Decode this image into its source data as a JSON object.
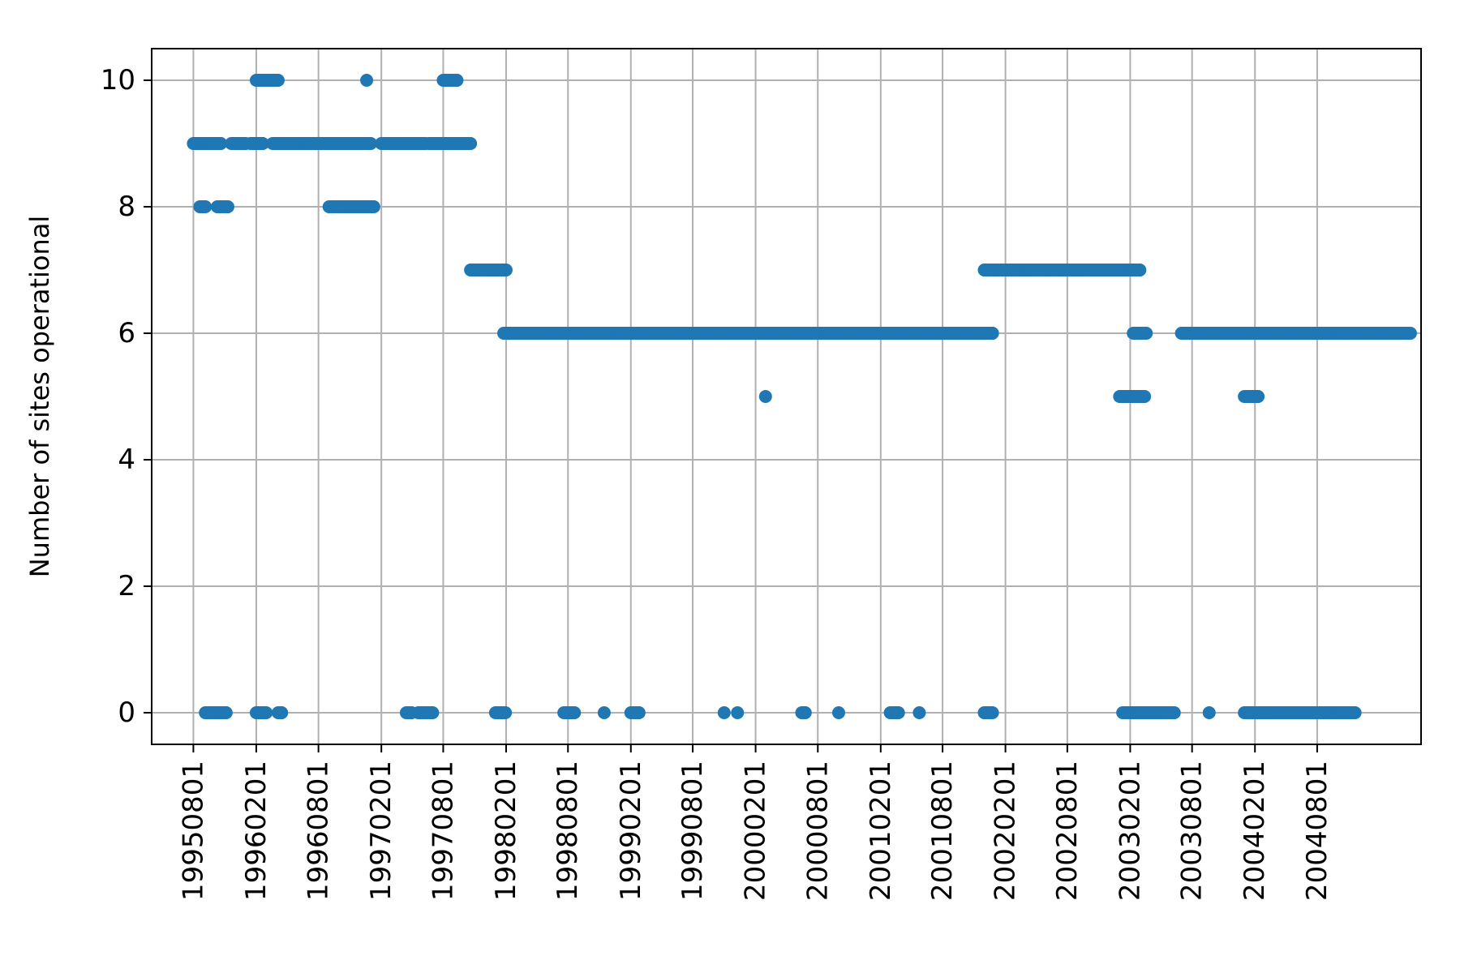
{
  "chart_data": {
    "type": "scatter",
    "title": "",
    "xlabel": "",
    "ylabel": "Number of sites operational",
    "x_axis_type": "date",
    "xlim": [
      "1995-04-01",
      "2005-06-01"
    ],
    "ylim": [
      -0.5,
      10.5
    ],
    "x_ticks": [
      {
        "date": "1995-08-01",
        "label": "19950801"
      },
      {
        "date": "1996-02-01",
        "label": "19960201"
      },
      {
        "date": "1996-08-01",
        "label": "19960801"
      },
      {
        "date": "1997-02-01",
        "label": "19970201"
      },
      {
        "date": "1997-08-01",
        "label": "19970801"
      },
      {
        "date": "1998-02-01",
        "label": "19980201"
      },
      {
        "date": "1998-08-01",
        "label": "19980801"
      },
      {
        "date": "1999-02-01",
        "label": "19990201"
      },
      {
        "date": "1999-08-01",
        "label": "19990801"
      },
      {
        "date": "2000-02-01",
        "label": "20000201"
      },
      {
        "date": "2000-08-01",
        "label": "20000801"
      },
      {
        "date": "2001-02-01",
        "label": "20010201"
      },
      {
        "date": "2001-08-01",
        "label": "20010801"
      },
      {
        "date": "2002-02-01",
        "label": "20020201"
      },
      {
        "date": "2002-08-01",
        "label": "20020801"
      },
      {
        "date": "2003-02-01",
        "label": "20030201"
      },
      {
        "date": "2003-08-01",
        "label": "20030801"
      },
      {
        "date": "2004-02-01",
        "label": "20040201"
      },
      {
        "date": "2004-08-01",
        "label": "20040801"
      }
    ],
    "y_ticks": [
      0,
      2,
      4,
      6,
      8,
      10
    ],
    "grid": true,
    "marker_color": "#1f77b4",
    "series": [
      {
        "runs": [
          {
            "from": "1995-08-01",
            "to": "1995-09-15",
            "y": 9
          },
          {
            "from": "1995-09-20",
            "to": "1995-10-20",
            "y": 9
          },
          {
            "from": "1995-08-20",
            "to": "1995-09-05",
            "y": 8
          },
          {
            "from": "1995-09-05",
            "to": "1995-11-05",
            "y": 0
          },
          {
            "from": "1995-11-20",
            "to": "1996-01-01",
            "y": 9
          },
          {
            "from": "1996-01-15",
            "to": "1996-02-20",
            "y": 9
          },
          {
            "from": "1995-10-10",
            "to": "1995-11-10",
            "y": 8
          },
          {
            "from": "1996-02-01",
            "to": "1996-04-05",
            "y": 10
          },
          {
            "from": "1996-02-01",
            "to": "1996-03-01",
            "y": 0
          },
          {
            "from": "1996-04-05",
            "to": "1996-04-15",
            "y": 0
          },
          {
            "from": "1996-03-20",
            "to": "1997-01-01",
            "y": 9
          },
          {
            "from": "1996-09-01",
            "to": "1997-01-10",
            "y": 8
          },
          {
            "date": "1996-12-20",
            "y": 10
          },
          {
            "from": "1997-02-01",
            "to": "1997-06-10",
            "y": 9
          },
          {
            "from": "1997-04-15",
            "to": "1997-04-30",
            "y": 0
          },
          {
            "from": "1997-05-20",
            "to": "1997-07-01",
            "y": 0
          },
          {
            "from": "1997-06-20",
            "to": "1997-10-20",
            "y": 9
          },
          {
            "from": "1997-08-01",
            "to": "1997-09-10",
            "y": 10
          },
          {
            "from": "1997-10-20",
            "to": "1998-02-01",
            "y": 7
          },
          {
            "from": "1998-01-01",
            "to": "1998-01-30",
            "y": 0
          },
          {
            "from": "1998-01-25",
            "to": "2001-12-25",
            "y": 6
          },
          {
            "from": "1998-07-20",
            "to": "1998-08-20",
            "y": 0
          },
          {
            "date": "1998-11-15",
            "y": 0
          },
          {
            "from": "1999-02-01",
            "to": "1999-02-25",
            "y": 0
          },
          {
            "date": "1999-11-01",
            "y": 0
          },
          {
            "date": "1999-12-10",
            "y": 0
          },
          {
            "date": "2000-03-01",
            "y": 5
          },
          {
            "from": "2000-06-15",
            "to": "2000-06-25",
            "y": 0
          },
          {
            "date": "2000-10-01",
            "y": 0
          },
          {
            "from": "2001-03-01",
            "to": "2001-03-25",
            "y": 0
          },
          {
            "date": "2001-05-25",
            "y": 0
          },
          {
            "from": "2001-12-01",
            "to": "2001-12-25",
            "y": 0
          },
          {
            "from": "2001-12-01",
            "to": "2003-03-01",
            "y": 7
          },
          {
            "from": "2003-01-01",
            "to": "2003-03-15",
            "y": 5
          },
          {
            "from": "2003-01-10",
            "to": "2003-06-10",
            "y": 0
          },
          {
            "from": "2003-02-10",
            "to": "2003-03-20",
            "y": 6
          },
          {
            "from": "2003-07-01",
            "to": "2004-10-20",
            "y": 6
          },
          {
            "date": "2003-09-20",
            "y": 0
          },
          {
            "from": "2004-01-01",
            "to": "2004-02-10",
            "y": 5
          },
          {
            "from": "2004-01-01",
            "to": "2004-11-20",
            "y": 0
          },
          {
            "from": "2004-10-20",
            "to": "2005-05-01",
            "y": 6
          }
        ]
      }
    ]
  }
}
